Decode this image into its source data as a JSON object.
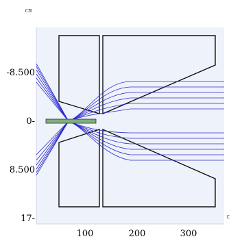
{
  "units": {
    "y": "cm",
    "x": "c"
  },
  "y_ticks": [
    {
      "label": "-8.500",
      "value": -8.5
    },
    {
      "label": "0-",
      "value": 0
    },
    {
      "label": "8.500",
      "value": 8.5
    },
    {
      "label": "17-",
      "value": 17
    }
  ],
  "x_ticks": [
    {
      "label": "100",
      "value": 100
    },
    {
      "label": "200",
      "value": 200
    },
    {
      "label": "300",
      "value": 300
    }
  ],
  "colors": {
    "plot_background": "#eef2fa",
    "beam_rays": "#2d2dcf",
    "electrodes": "#111111",
    "source": "#7fae7f"
  }
}
